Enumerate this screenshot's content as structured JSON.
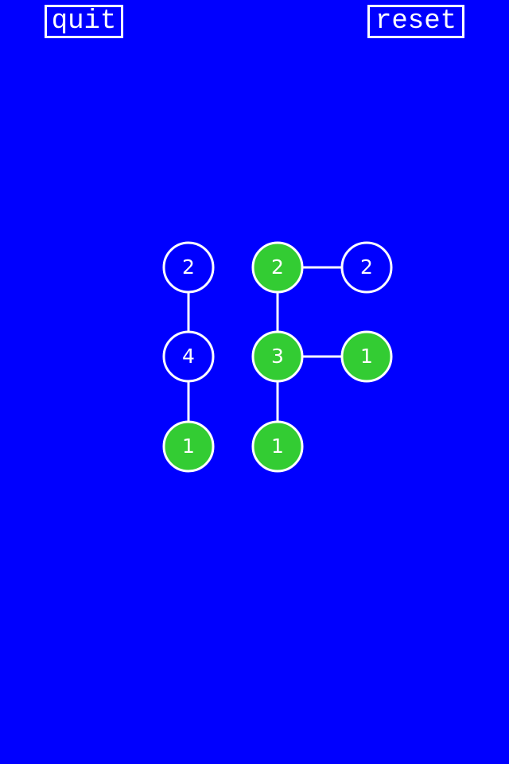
{
  "toolbar": {
    "quit_label": "quit",
    "reset_label": "reset"
  },
  "colors": {
    "background": "#0000ff",
    "node_active": "#33cc33",
    "node_inactive": "#0000ff",
    "stroke": "#ffffff"
  },
  "puzzle": {
    "nodes": [
      {
        "id": "a1",
        "value": "2",
        "active": false
      },
      {
        "id": "a2",
        "value": "4",
        "active": false
      },
      {
        "id": "a3",
        "value": "1",
        "active": true
      },
      {
        "id": "b1",
        "value": "2",
        "active": true
      },
      {
        "id": "b2",
        "value": "3",
        "active": true
      },
      {
        "id": "b3",
        "value": "1",
        "active": true
      },
      {
        "id": "c1",
        "value": "2",
        "active": false
      },
      {
        "id": "c2",
        "value": "1",
        "active": true
      }
    ],
    "edges": [
      [
        "a1",
        "a2"
      ],
      [
        "a2",
        "a3"
      ],
      [
        "b1",
        "b2"
      ],
      [
        "b2",
        "b3"
      ],
      [
        "b1",
        "c1"
      ],
      [
        "b2",
        "c2"
      ]
    ]
  }
}
